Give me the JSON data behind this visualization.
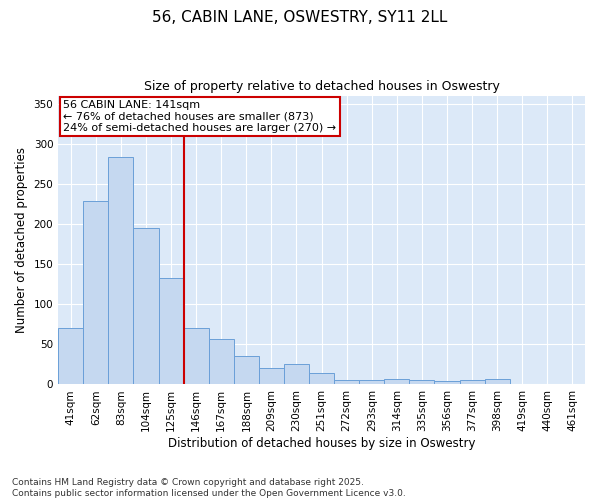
{
  "title": "56, CABIN LANE, OSWESTRY, SY11 2LL",
  "subtitle": "Size of property relative to detached houses in Oswestry",
  "xlabel": "Distribution of detached houses by size in Oswestry",
  "ylabel": "Number of detached properties",
  "categories": [
    "41sqm",
    "62sqm",
    "83sqm",
    "104sqm",
    "125sqm",
    "146sqm",
    "167sqm",
    "188sqm",
    "209sqm",
    "230sqm",
    "251sqm",
    "272sqm",
    "293sqm",
    "314sqm",
    "335sqm",
    "356sqm",
    "377sqm",
    "398sqm",
    "419sqm",
    "440sqm",
    "461sqm"
  ],
  "values": [
    70,
    228,
    283,
    195,
    133,
    70,
    57,
    35,
    20,
    25,
    14,
    5,
    6,
    7,
    5,
    4,
    5,
    7,
    1,
    0,
    1
  ],
  "bar_color": "#c5d8f0",
  "bar_edge_color": "#6a9fd8",
  "vline_x": 4.5,
  "vline_color": "#cc0000",
  "annotation_text": "56 CABIN LANE: 141sqm\n← 76% of detached houses are smaller (873)\n24% of semi-detached houses are larger (270) →",
  "annotation_box_color": "#cc0000",
  "ylim": [
    0,
    360
  ],
  "yticks": [
    0,
    50,
    100,
    150,
    200,
    250,
    300,
    350
  ],
  "plot_bg_color": "#dce9f8",
  "fig_bg_color": "#ffffff",
  "footer_text": "Contains HM Land Registry data © Crown copyright and database right 2025.\nContains public sector information licensed under the Open Government Licence v3.0.",
  "title_fontsize": 11,
  "subtitle_fontsize": 9,
  "axis_label_fontsize": 8.5,
  "tick_fontsize": 7.5,
  "footer_fontsize": 6.5,
  "annotation_fontsize": 8
}
